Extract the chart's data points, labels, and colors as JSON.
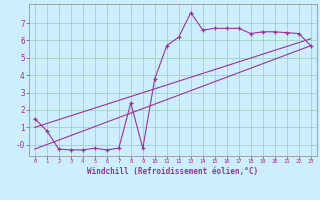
{
  "bg_color": "#cceeff",
  "grid_color": "#99ccbb",
  "line_color": "#993399",
  "xlim": [
    -0.5,
    23.5
  ],
  "ylim": [
    -0.65,
    8.1
  ],
  "ytick_vals": [
    0,
    1,
    2,
    3,
    4,
    5,
    6,
    7
  ],
  "ytick_labels": [
    "-0",
    "1",
    "2",
    "3",
    "4",
    "5",
    "6",
    "7"
  ],
  "xtick_vals": [
    0,
    1,
    2,
    3,
    4,
    5,
    6,
    7,
    8,
    9,
    10,
    11,
    12,
    13,
    14,
    15,
    16,
    17,
    18,
    19,
    20,
    21,
    22,
    23
  ],
  "curve_x": [
    0,
    1,
    2,
    3,
    4,
    5,
    6,
    7,
    8,
    9,
    10,
    11,
    12,
    13,
    14,
    15,
    16,
    17,
    18,
    19,
    20,
    21,
    22,
    23
  ],
  "curve_y": [
    1.5,
    0.8,
    -0.25,
    -0.3,
    -0.3,
    -0.2,
    -0.3,
    -0.2,
    2.4,
    -0.2,
    3.8,
    5.7,
    6.2,
    7.6,
    6.6,
    6.7,
    6.7,
    6.7,
    6.4,
    6.5,
    6.5,
    6.45,
    6.4,
    5.7
  ],
  "line1_x": [
    0,
    23
  ],
  "line1_y": [
    1.0,
    6.1
  ],
  "line2_x": [
    0,
    23
  ],
  "line2_y": [
    -0.25,
    5.7
  ],
  "xlabel": "Windchill (Refroidissement éolien,°C)"
}
